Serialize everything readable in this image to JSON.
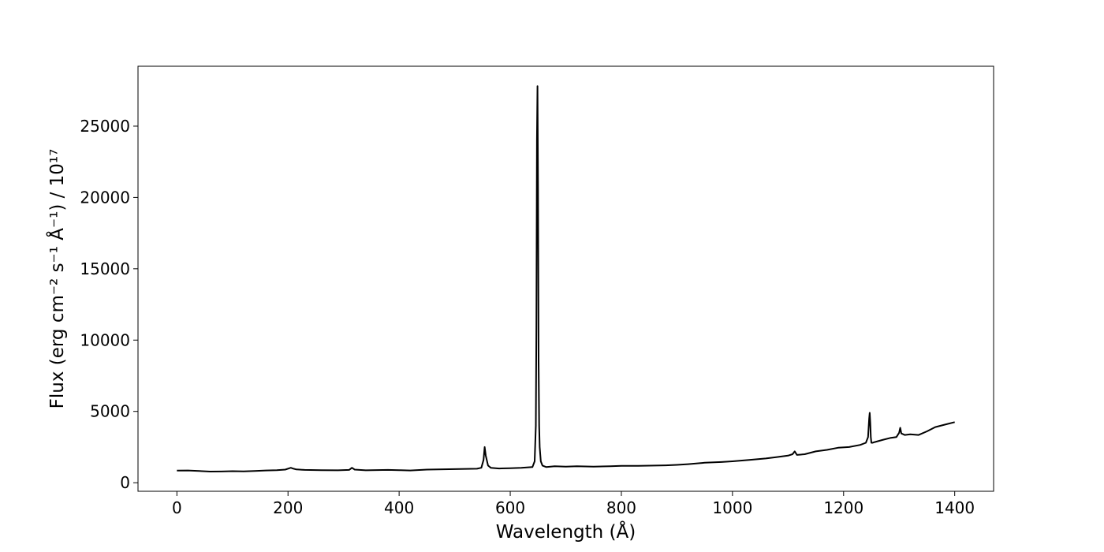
{
  "chart_data": {
    "type": "line",
    "title": "",
    "xlabel": "Wavelength (Å)",
    "ylabel": "Flux (erg cm⁻² s⁻¹ Å⁻¹) / 10¹⁷",
    "xlim": [
      -70,
      1470
    ],
    "ylim": [
      -600,
      29200
    ],
    "xticks": [
      0,
      200,
      400,
      600,
      800,
      1000,
      1200,
      1400
    ],
    "yticks": [
      0,
      5000,
      10000,
      15000,
      20000,
      25000
    ],
    "grid": false,
    "legend": "none",
    "series": [
      {
        "color": "#000000",
        "x": [
          0,
          20,
          40,
          60,
          80,
          100,
          120,
          140,
          160,
          180,
          195,
          205,
          210,
          215,
          230,
          260,
          290,
          310,
          315,
          320,
          340,
          380,
          400,
          420,
          450,
          480,
          510,
          540,
          548,
          552,
          554,
          556,
          560,
          565,
          580,
          600,
          620,
          640,
          644,
          646,
          647,
          648,
          649,
          650,
          651,
          652,
          653,
          655,
          658,
          665,
          680,
          700,
          720,
          750,
          780,
          800,
          830,
          860,
          880,
          900,
          920,
          950,
          980,
          1000,
          1030,
          1060,
          1080,
          1100,
          1108,
          1112,
          1116,
          1130,
          1150,
          1170,
          1190,
          1210,
          1230,
          1240,
          1244,
          1246,
          1247,
          1248,
          1249,
          1250,
          1252,
          1256,
          1270,
          1285,
          1295,
          1300,
          1302,
          1304,
          1310,
          1320,
          1335,
          1350,
          1365,
          1380,
          1400
        ],
        "y": [
          850,
          860,
          820,
          780,
          790,
          810,
          800,
          820,
          860,
          880,
          920,
          1050,
          980,
          930,
          900,
          880,
          870,
          900,
          1050,
          920,
          870,
          900,
          880,
          860,
          920,
          940,
          960,
          980,
          1050,
          1600,
          2500,
          1900,
          1200,
          1050,
          1000,
          1020,
          1050,
          1100,
          1500,
          4000,
          11000,
          24000,
          27800,
          20500,
          8500,
          4000,
          2500,
          1500,
          1200,
          1100,
          1150,
          1130,
          1160,
          1130,
          1150,
          1180,
          1180,
          1200,
          1220,
          1250,
          1300,
          1400,
          1450,
          1500,
          1600,
          1700,
          1800,
          1900,
          2000,
          2200,
          1950,
          2000,
          2200,
          2300,
          2450,
          2500,
          2650,
          2800,
          3200,
          4500,
          4900,
          4200,
          3200,
          2800,
          2800,
          2850,
          3000,
          3150,
          3200,
          3500,
          3850,
          3450,
          3350,
          3400,
          3350,
          3600,
          3900,
          4050,
          4250
        ]
      }
    ]
  }
}
